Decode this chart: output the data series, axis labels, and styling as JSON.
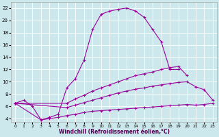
{
  "xlabel": "Windchill (Refroidissement éolien,°C)",
  "background_color": "#cce8ec",
  "line_color": "#990099",
  "xlim": [
    -0.5,
    23.5
  ],
  "ylim": [
    3.5,
    23
  ],
  "yticks": [
    4,
    6,
    8,
    10,
    12,
    14,
    16,
    18,
    20,
    22
  ],
  "xticks": [
    0,
    1,
    2,
    3,
    4,
    5,
    6,
    7,
    8,
    9,
    10,
    11,
    12,
    13,
    14,
    15,
    16,
    17,
    18,
    19,
    20,
    21,
    22,
    23
  ],
  "series": [
    {
      "x": [
        0,
        1,
        2,
        3,
        4,
        5,
        6,
        7,
        8,
        9,
        10,
        11,
        12,
        13,
        14,
        15,
        16,
        17,
        18,
        19
      ],
      "y": [
        6.5,
        7.0,
        6.0,
        3.8,
        4.2,
        4.7,
        9.0,
        10.5,
        13.5,
        18.5,
        21.0,
        21.5,
        21.8,
        22.0,
        21.5,
        20.5,
        18.5,
        16.5,
        12.0,
        12.0
      ]
    },
    {
      "x": [
        0,
        6,
        7,
        8,
        9,
        10,
        11,
        12,
        13,
        14,
        15,
        16,
        17,
        18,
        19,
        20
      ],
      "y": [
        6.5,
        6.5,
        7.2,
        7.8,
        8.5,
        9.0,
        9.5,
        10.0,
        10.5,
        11.0,
        11.3,
        11.6,
        12.0,
        12.3,
        12.5,
        11.0
      ]
    },
    {
      "x": [
        0,
        6,
        7,
        8,
        9,
        10,
        11,
        12,
        13,
        14,
        15,
        16,
        17,
        18,
        19,
        20,
        21,
        22,
        23
      ],
      "y": [
        6.5,
        5.8,
        6.2,
        6.6,
        7.0,
        7.4,
        7.8,
        8.2,
        8.5,
        8.8,
        9.0,
        9.3,
        9.5,
        9.7,
        9.9,
        10.0,
        9.2,
        8.7,
        7.0
      ]
    },
    {
      "x": [
        0,
        3,
        4,
        5,
        6,
        7,
        8,
        9,
        10,
        11,
        12,
        13,
        14,
        15,
        16,
        17,
        18,
        19,
        20,
        21,
        22,
        23
      ],
      "y": [
        6.5,
        3.8,
        4.0,
        4.2,
        4.5,
        4.7,
        5.0,
        5.2,
        5.3,
        5.4,
        5.5,
        5.6,
        5.7,
        5.8,
        5.9,
        6.0,
        6.1,
        6.2,
        6.3,
        6.2,
        6.3,
        6.5
      ]
    }
  ]
}
